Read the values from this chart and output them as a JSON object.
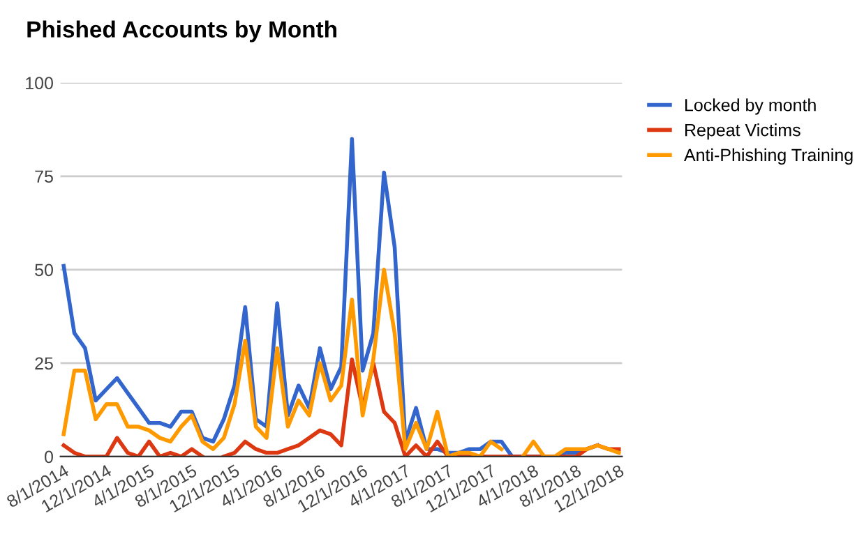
{
  "chart_data": {
    "type": "line",
    "title": "Phished Accounts by Month",
    "categories": [
      "8/1/2014",
      null,
      null,
      null,
      "12/1/2014",
      null,
      null,
      null,
      "4/1/2015",
      null,
      null,
      null,
      "8/1/2015",
      null,
      null,
      null,
      "12/1/2015",
      null,
      null,
      null,
      "4/1/2016",
      null,
      null,
      null,
      "8/1/2016",
      null,
      null,
      null,
      "12/1/2016",
      null,
      null,
      null,
      "4/1/2017",
      null,
      null,
      null,
      "8/1/2017",
      null,
      null,
      null,
      "12/1/2017",
      null,
      null,
      null,
      "4/1/2018",
      null,
      null,
      null,
      "8/1/2018",
      null,
      null,
      null,
      "12/1/2018"
    ],
    "series": [
      {
        "name": "Locked by month",
        "color": "#3366cc",
        "values": [
          51,
          33,
          29,
          15,
          18,
          21,
          17,
          13,
          9,
          9,
          8,
          12,
          12,
          5,
          4,
          10,
          19,
          40,
          10,
          8,
          41,
          11,
          19,
          13,
          29,
          18,
          24,
          85,
          23,
          33,
          76,
          56,
          4,
          13,
          2,
          2,
          1,
          1,
          2,
          2,
          4,
          4,
          0,
          0,
          0,
          0,
          0,
          1,
          1,
          2,
          3,
          null,
          null
        ]
      },
      {
        "name": "Repeat Victims",
        "color": "#dc3912",
        "values": [
          3,
          1,
          0,
          0,
          0,
          5,
          1,
          0,
          4,
          0,
          1,
          0,
          2,
          0,
          null,
          0,
          1,
          4,
          2,
          1,
          1,
          2,
          3,
          5,
          7,
          6,
          3,
          26,
          13,
          25,
          12,
          9,
          0,
          3,
          0,
          4,
          0,
          0,
          0,
          0,
          0,
          0,
          0,
          0,
          0,
          0,
          0,
          0,
          0,
          2,
          3,
          2,
          2
        ]
      },
      {
        "name": "Anti-Phishing Training",
        "color": "#ff9900",
        "values": [
          6,
          23,
          23,
          10,
          14,
          14,
          8,
          8,
          7,
          5,
          4,
          8,
          11,
          4,
          2,
          5,
          14,
          31,
          8,
          5,
          29,
          8,
          15,
          11,
          25,
          15,
          19,
          42,
          11,
          26,
          50,
          33,
          2,
          9,
          2,
          12,
          0,
          1,
          1,
          0,
          4,
          2,
          null,
          0,
          4,
          0,
          0,
          2,
          2,
          2,
          3,
          2,
          1
        ]
      }
    ],
    "ylim": [
      0,
      100
    ],
    "yticks": [
      0,
      25,
      50,
      75,
      100
    ],
    "grid": "y",
    "legend": "top right",
    "marker": "none",
    "line_style": "solid"
  }
}
